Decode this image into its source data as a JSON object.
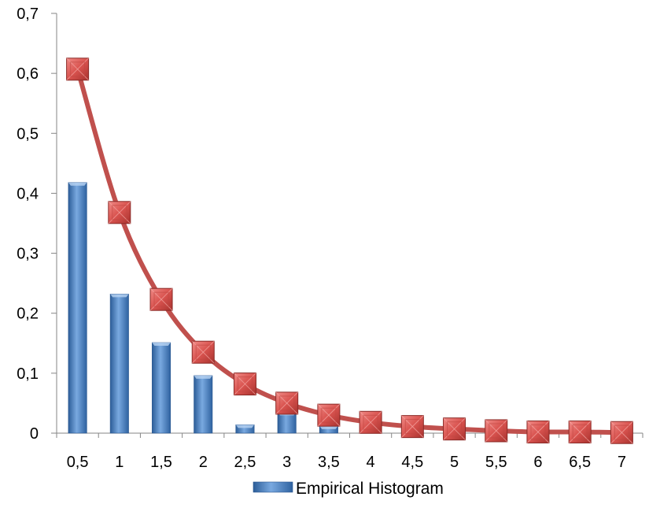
{
  "chart_data": {
    "type": "bar",
    "categories": [
      "0,5",
      "1",
      "1,5",
      "2",
      "2,5",
      "3",
      "3,5",
      "4",
      "4,5",
      "5",
      "5,5",
      "6",
      "6,5",
      "7"
    ],
    "ylim": [
      0,
      0.7
    ],
    "yticks": [
      "0",
      "0,1",
      "0,2",
      "0,3",
      "0,4",
      "0,5",
      "0,6",
      "0,7"
    ],
    "grid": false,
    "legend_position": "bottom",
    "series": [
      {
        "name": "Empirical Histogram",
        "kind": "bar",
        "color": "#4f81bd",
        "values": [
          0.418,
          0.232,
          0.151,
          0.096,
          0.014,
          0.035,
          0.012,
          0,
          0,
          0,
          0,
          0,
          0,
          0
        ]
      },
      {
        "kind": "line",
        "color": "#c0504d",
        "marker": "square",
        "values": [
          0.607,
          0.368,
          0.223,
          0.135,
          0.082,
          0.05,
          0.03,
          0.018,
          0.011,
          0.007,
          0.004,
          0.002,
          0.002,
          0.001
        ]
      }
    ]
  }
}
